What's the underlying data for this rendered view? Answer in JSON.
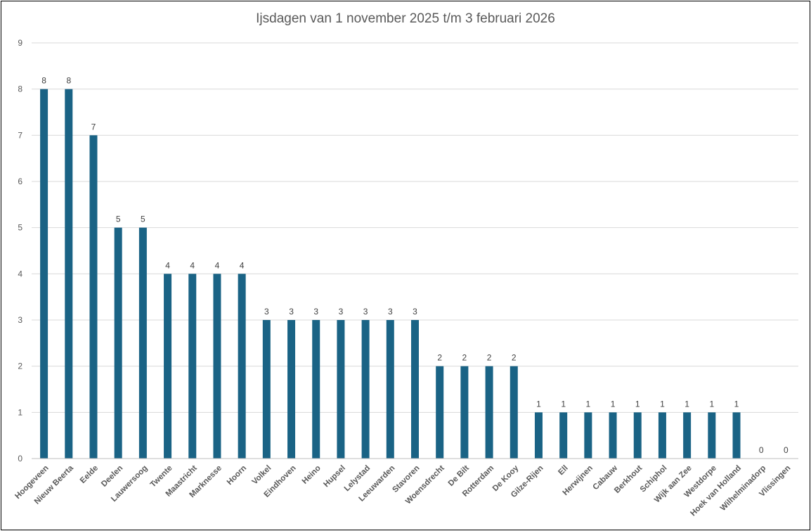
{
  "chart_data": {
    "type": "bar",
    "title": "Ijsdagen van 1 november 2025 t/m 3 februari 2026",
    "xlabel": "",
    "ylabel": "",
    "ylim": [
      0,
      9
    ],
    "yticks": [
      0,
      1,
      2,
      3,
      4,
      5,
      6,
      7,
      8,
      9
    ],
    "grid": true,
    "legend": "none",
    "bar_color": "#1A6385",
    "categories": [
      "Hoogeveen",
      "Nieuw Beerta",
      "Eelde",
      "Deelen",
      "Lauwersoog",
      "Twente",
      "Maastricht",
      "Marknesse",
      "Hoorn",
      "Volkel",
      "Eindhoven",
      "Heino",
      "Hupsel",
      "Lelystad",
      "Leeuwarden",
      "Stavoren",
      "Woensdrecht",
      "De Bilt",
      "Rotterdam",
      "De Kooy",
      "Gilze-Rijen",
      "Ell",
      "Herwijnen",
      "Cabauw",
      "Berkhout",
      "Schiphol",
      "Wijk aan Zee",
      "Westdorpe",
      "Hoek van Holland",
      "Wilhelminadorp",
      "Vlissingen"
    ],
    "values": [
      8,
      8,
      7,
      5,
      5,
      4,
      4,
      4,
      4,
      3,
      3,
      3,
      3,
      3,
      3,
      3,
      2,
      2,
      2,
      2,
      1,
      1,
      1,
      1,
      1,
      1,
      1,
      1,
      1,
      0,
      0
    ]
  }
}
